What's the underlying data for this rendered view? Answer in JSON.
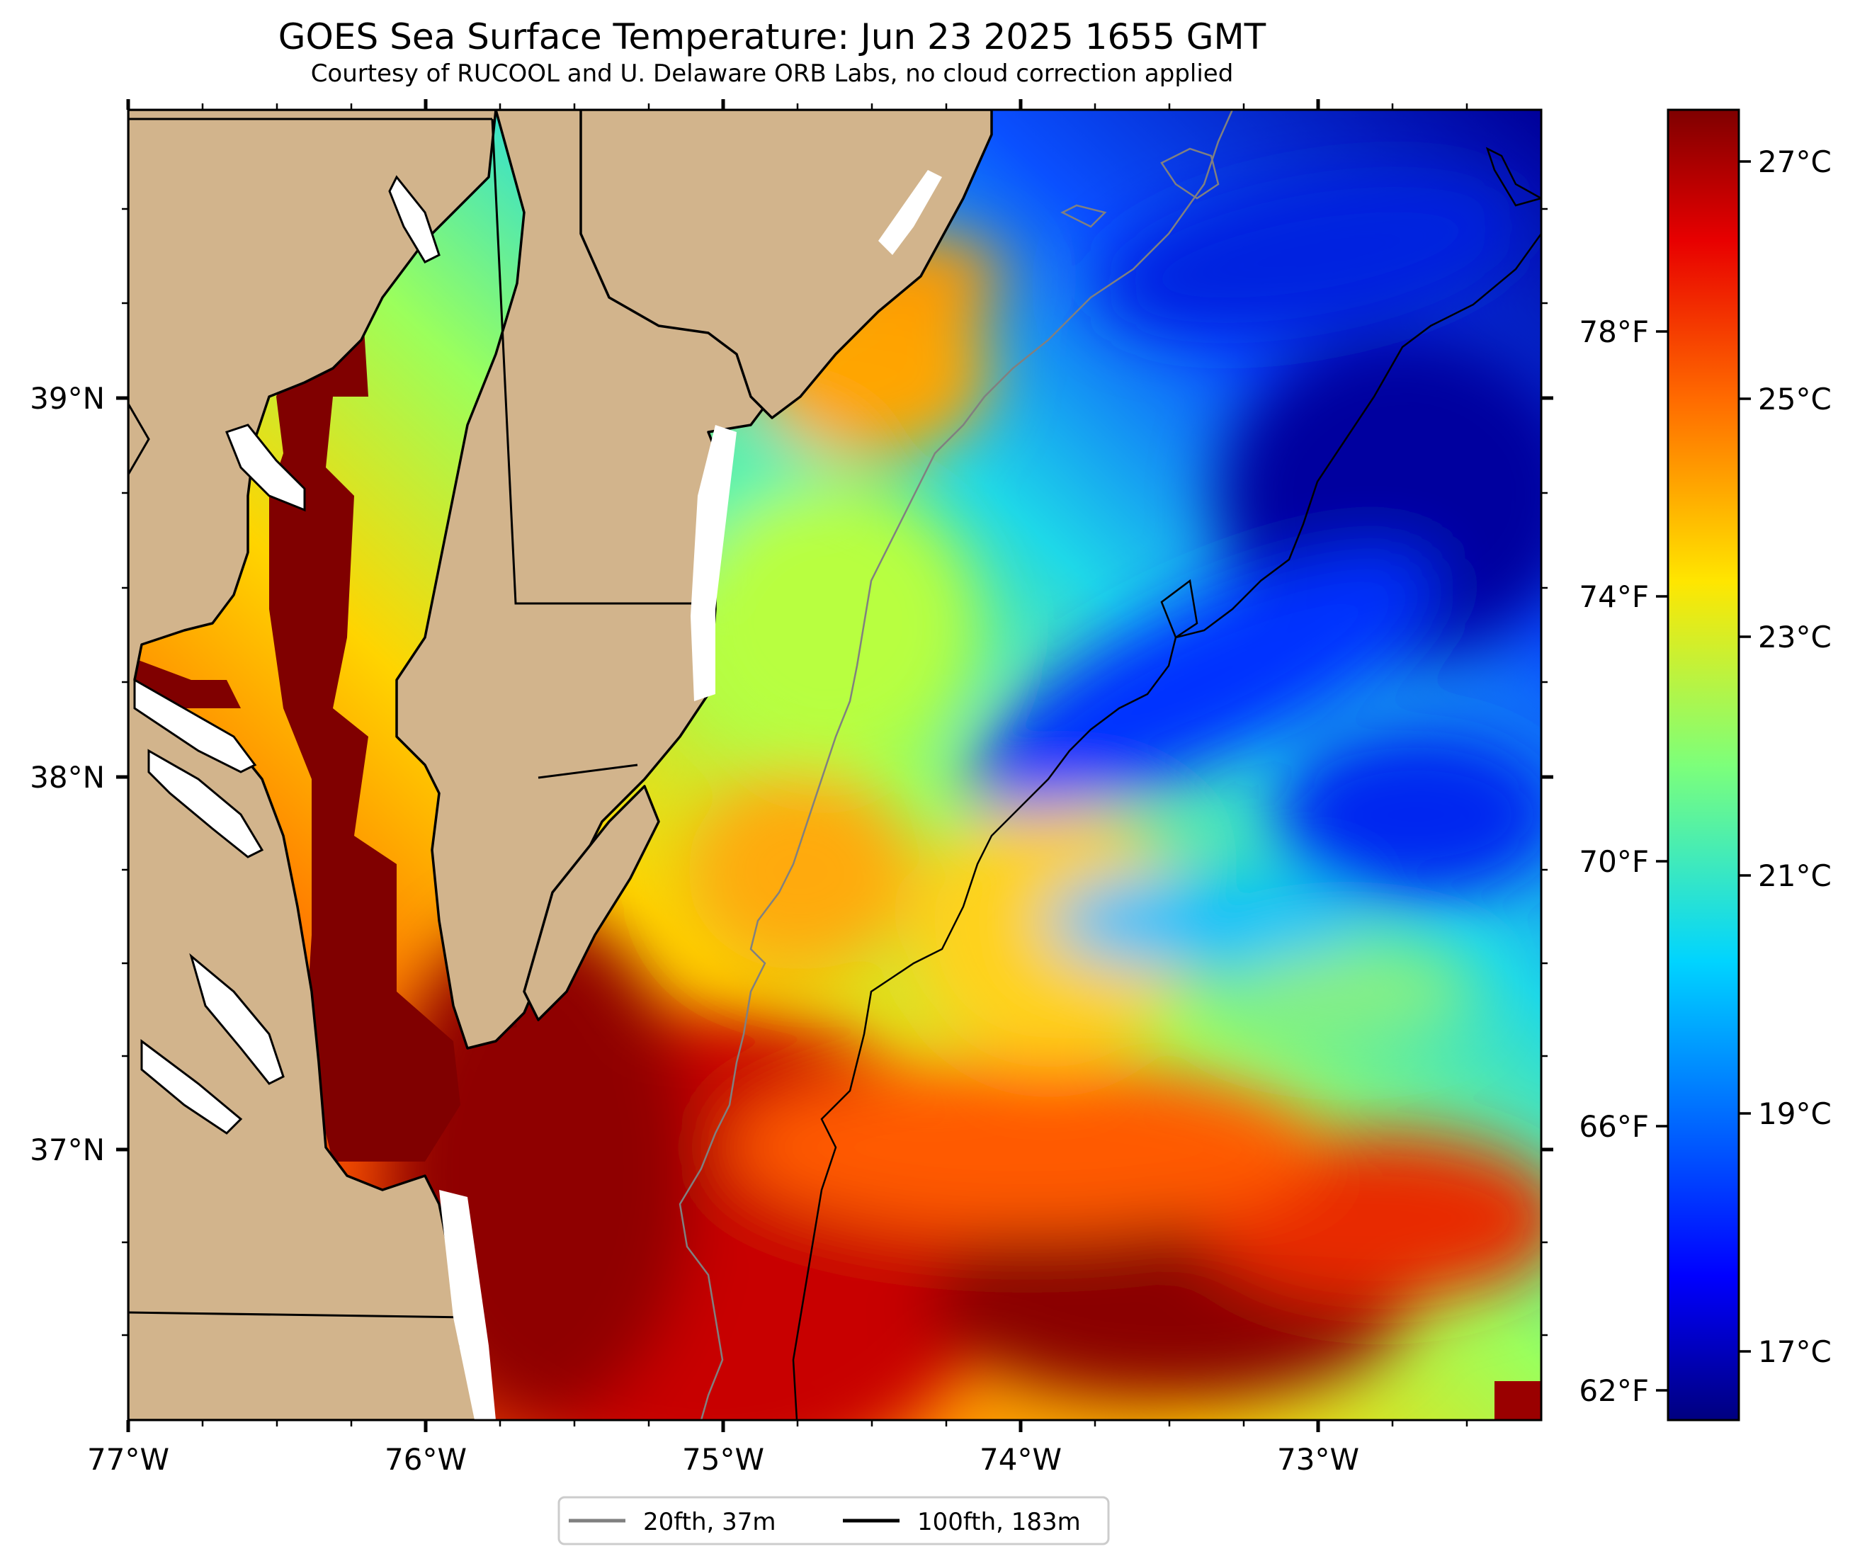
{
  "title": "GOES Sea Surface Temperature: Jun 23 2025 1655 GMT",
  "subtitle": "Courtesy of RUCOOL and U. Delaware ORB Labs, no cloud correction applied",
  "x_axis": {
    "ticks": [
      "77°W",
      "76°W",
      "75°W",
      "74°W",
      "73°W"
    ]
  },
  "y_axis": {
    "ticks": [
      "39°N",
      "38°N",
      "37°N"
    ]
  },
  "colorbar": {
    "celsius_ticks": [
      "27°C",
      "25°C",
      "23°C",
      "21°C",
      "19°C",
      "17°C"
    ],
    "fahrenheit_ticks": [
      "78°F",
      "74°F",
      "70°F",
      "66°F",
      "62°F"
    ],
    "range_c": [
      16.4,
      27.5
    ],
    "colormap": "jet"
  },
  "legend": {
    "items": [
      {
        "label": "20fth, 37m",
        "color": "#808080"
      },
      {
        "label": "100fth, 183m",
        "color": "#000000"
      }
    ]
  },
  "colors": {
    "land": "#D2B48C",
    "coast": "#000000",
    "isobath_20fth": "#808080",
    "isobath_100fth": "#000000"
  },
  "extent": {
    "lon": [
      -77,
      -72.25
    ],
    "lat": [
      36.3,
      39.75
    ]
  }
}
